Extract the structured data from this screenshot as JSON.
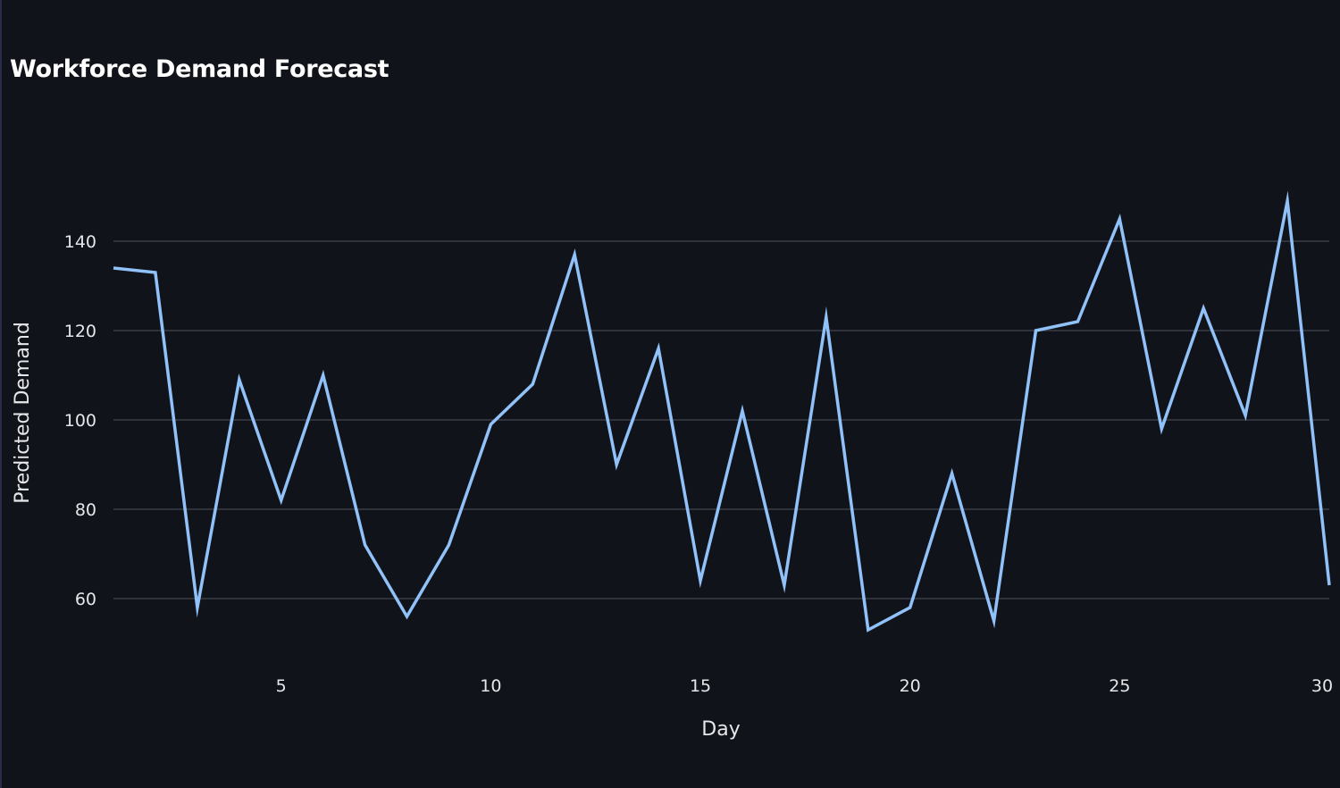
{
  "chart_data": {
    "type": "line",
    "title": "Workforce Demand Forecast",
    "xlabel": "Day",
    "ylabel": "Predicted Demand",
    "xlim": [
      1,
      30
    ],
    "ylim": [
      50,
      152
    ],
    "x_ticks": [
      5,
      10,
      15,
      20,
      25,
      30
    ],
    "y_ticks": [
      60,
      80,
      100,
      120,
      140
    ],
    "grid": true,
    "colors": {
      "background": "#11131a",
      "line": "#90c2f9",
      "grid": "#3a3d46",
      "text": "#e6e7ea"
    },
    "series": [
      {
        "x": [
          1,
          2,
          3,
          4,
          5,
          6,
          7,
          8,
          9,
          10,
          11,
          12,
          13,
          14,
          15,
          16,
          17,
          18,
          19,
          20,
          21,
          22,
          23,
          24,
          25,
          26,
          27,
          28,
          29,
          30
        ],
        "values": [
          134,
          133,
          58,
          109,
          82,
          110,
          72,
          56,
          72,
          99,
          108,
          137,
          90,
          116,
          64,
          102,
          63,
          123,
          53,
          58,
          88,
          55,
          120,
          122,
          145,
          98,
          125,
          101,
          149,
          63
        ]
      }
    ]
  }
}
